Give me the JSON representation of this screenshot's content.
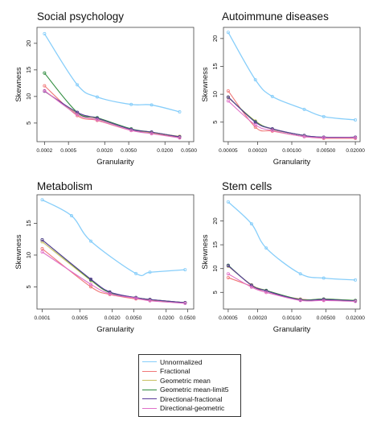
{
  "chart_data": [
    {
      "type": "line",
      "title": "Social psychology",
      "xlabel": "Granularity",
      "ylabel": "Skewness",
      "x_scale": "log",
      "xlim": [
        0.00015,
        0.06
      ],
      "ylim": [
        1.5,
        23
      ],
      "xticks": [
        0.0002,
        0.0005,
        0.002,
        0.005,
        0.02,
        0.05
      ],
      "xtick_labels": [
        "0.0002",
        "0.0005",
        "0.0020",
        "0.0050",
        "0.0200",
        "0.0500"
      ],
      "yticks": [
        5,
        10,
        15,
        20
      ],
      "ytick_labels": [
        "5",
        "10",
        "15",
        "20"
      ],
      "x": [
        0.0002,
        0.0007,
        0.0015,
        0.0055,
        0.012,
        0.035
      ],
      "series": [
        {
          "name": "Unnormalized",
          "values": [
            21.8,
            12.2,
            9.9,
            8.5,
            8.4,
            7.1
          ]
        },
        {
          "name": "Fractional",
          "values": [
            12.0,
            6.4,
            5.5,
            3.6,
            3.1,
            2.3
          ]
        },
        {
          "name": "Geometric mean",
          "values": [
            11.0,
            6.8,
            5.8,
            3.8,
            3.2,
            2.5
          ]
        },
        {
          "name": "Geometric mean-limit5",
          "values": [
            14.4,
            7.0,
            6.0,
            3.9,
            3.3,
            2.4
          ]
        },
        {
          "name": "Directional-fractional",
          "values": [
            11.0,
            7.0,
            5.9,
            3.8,
            3.3,
            2.4
          ]
        },
        {
          "name": "Directional-geometric",
          "values": [
            11.1,
            6.6,
            5.6,
            3.6,
            3.0,
            2.2
          ]
        }
      ]
    },
    {
      "type": "line",
      "title": "Autoimmune diseases",
      "xlabel": "Granularity",
      "ylabel": "Skewness",
      "x_scale": "log",
      "xlim": [
        4e-05,
        0.025
      ],
      "ylim": [
        1.5,
        22
      ],
      "xticks": [
        5e-05,
        0.0002,
        0.001,
        0.005,
        0.02
      ],
      "xtick_labels": [
        "0.00005",
        "0.00020",
        "0.00100",
        "0.00500",
        "0.02000"
      ],
      "yticks": [
        5,
        10,
        15,
        20
      ],
      "ytick_labels": [
        "5",
        "10",
        "15",
        "20"
      ],
      "x": [
        5e-05,
        0.00018,
        0.0004,
        0.0018,
        0.0045,
        0.02
      ],
      "series": [
        {
          "name": "Unnormalized",
          "values": [
            21.1,
            12.6,
            9.6,
            7.3,
            6.0,
            5.4
          ]
        },
        {
          "name": "Fractional",
          "values": [
            10.6,
            4.1,
            3.4,
            2.4,
            2.1,
            2.1
          ]
        },
        {
          "name": "Geometric mean",
          "values": [
            9.4,
            5.2,
            3.7,
            2.6,
            2.2,
            2.2
          ]
        },
        {
          "name": "Geometric mean-limit5",
          "values": [
            9.5,
            5.1,
            3.8,
            2.6,
            2.3,
            2.3
          ]
        },
        {
          "name": "Directional-fractional",
          "values": [
            9.5,
            5.0,
            3.8,
            2.6,
            2.3,
            2.3
          ]
        },
        {
          "name": "Directional-geometric",
          "values": [
            8.8,
            4.5,
            3.5,
            2.4,
            2.2,
            2.2
          ]
        }
      ]
    },
    {
      "type": "line",
      "title": "Metabolism",
      "xlabel": "Granularity",
      "ylabel": "Skewness",
      "x_scale": "log",
      "xlim": [
        8e-05,
        0.065
      ],
      "ylim": [
        1.5,
        19.5
      ],
      "xticks": [
        0.0001,
        0.0005,
        0.002,
        0.005,
        0.02,
        0.05
      ],
      "xtick_labels": [
        "0.0001",
        "0.0005",
        "0.0020",
        "0.0050",
        "0.0200",
        "0.0500"
      ],
      "yticks": [
        5,
        10,
        15
      ],
      "ytick_labels": [
        "5",
        "10",
        "15"
      ],
      "x": [
        0.0001,
        0.00035,
        0.0008,
        0.0018,
        0.0055,
        0.01,
        0.045
      ],
      "series": [
        {
          "name": "Unnormalized",
          "values": [
            18.7,
            16.2,
            12.2,
            null,
            7.1,
            7.3,
            7.7
          ]
        },
        {
          "name": "Fractional",
          "values": [
            11.0,
            null,
            5.0,
            3.8,
            3.1,
            2.9,
            2.5
          ]
        },
        {
          "name": "Geometric mean",
          "values": [
            12.1,
            null,
            6.0,
            4.1,
            3.3,
            3.0,
            2.5
          ]
        },
        {
          "name": "Geometric mean-limit5",
          "values": [
            12.4,
            null,
            6.1,
            4.1,
            3.3,
            3.0,
            2.5
          ]
        },
        {
          "name": "Directional-fractional",
          "values": [
            12.4,
            null,
            6.2,
            4.2,
            3.3,
            3.0,
            2.5
          ]
        },
        {
          "name": "Directional-geometric",
          "values": [
            10.5,
            null,
            5.4,
            3.9,
            3.2,
            2.8,
            2.4
          ]
        }
      ]
    },
    {
      "type": "line",
      "title": "Stem cells",
      "xlabel": "Granularity",
      "ylabel": "Skewness",
      "x_scale": "log",
      "xlim": [
        4e-05,
        0.025
      ],
      "ylim": [
        1.5,
        25.5
      ],
      "xticks": [
        5e-05,
        0.0002,
        0.001,
        0.005,
        0.02
      ],
      "xtick_labels": [
        "0.00005",
        "0.00020",
        "0.00100",
        "0.00500",
        "0.02000"
      ],
      "yticks": [
        5,
        10,
        15,
        20
      ],
      "ytick_labels": [
        "5",
        "10",
        "15",
        "20"
      ],
      "x": [
        5e-05,
        0.00015,
        0.0003,
        0.0015,
        0.0045,
        0.02
      ],
      "series": [
        {
          "name": "Unnormalized",
          "values": [
            24.0,
            19.4,
            14.3,
            8.9,
            8.0,
            7.6
          ]
        },
        {
          "name": "Fractional",
          "values": [
            8.1,
            6.3,
            5.0,
            3.6,
            3.4,
            3.2
          ]
        },
        {
          "name": "Geometric mean",
          "values": [
            10.5,
            6.6,
            5.4,
            3.5,
            3.6,
            3.3
          ]
        },
        {
          "name": "Geometric mean-limit5",
          "values": [
            10.7,
            6.5,
            5.4,
            3.5,
            3.6,
            3.3
          ]
        },
        {
          "name": "Directional-fractional",
          "values": [
            10.6,
            6.5,
            5.3,
            3.4,
            3.5,
            3.2
          ]
        },
        {
          "name": "Directional-geometric",
          "values": [
            8.9,
            6.1,
            5.0,
            3.3,
            3.3,
            3.1
          ]
        }
      ]
    }
  ],
  "legend": {
    "placement": "bottom-center",
    "entries": [
      {
        "label": "Unnormalized",
        "color": "#87cefa"
      },
      {
        "label": "Fractional",
        "color": "#f07878"
      },
      {
        "label": "Geometric mean",
        "color": "#c8c060"
      },
      {
        "label": "Geometric mean-limit5",
        "color": "#2e8b3e"
      },
      {
        "label": "Directional-fractional",
        "color": "#5a3a9a"
      },
      {
        "label": "Directional-geometric",
        "color": "#e070c8"
      }
    ]
  }
}
